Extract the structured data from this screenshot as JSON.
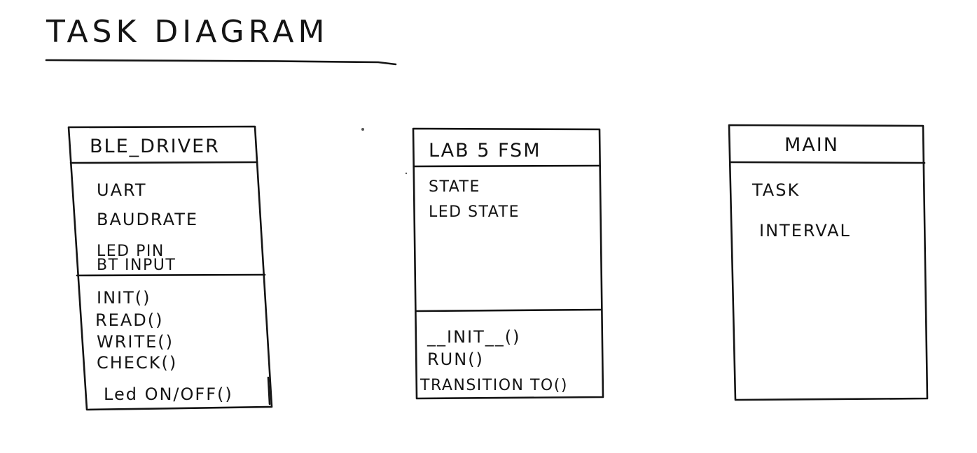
{
  "title": "TASK DIAGRAM",
  "classes": [
    {
      "name": "BLE_DRIVER",
      "attributes": [
        "UART",
        "BAUDRATE",
        "LED PIN",
        "BT INPUT"
      ],
      "methods": [
        "INIT()",
        "READ()",
        "WRITE()",
        "CHECK()",
        "Led ON/OFF()"
      ]
    },
    {
      "name": "LAB 5 FSM",
      "attributes": [
        "STATE",
        "LED STATE"
      ],
      "methods": [
        "__INIT__()",
        "RUN()",
        "TRANSITION TO()"
      ]
    },
    {
      "name": "MAIN",
      "attributes": [
        "TASK",
        "INTERVAL"
      ],
      "methods": []
    }
  ]
}
